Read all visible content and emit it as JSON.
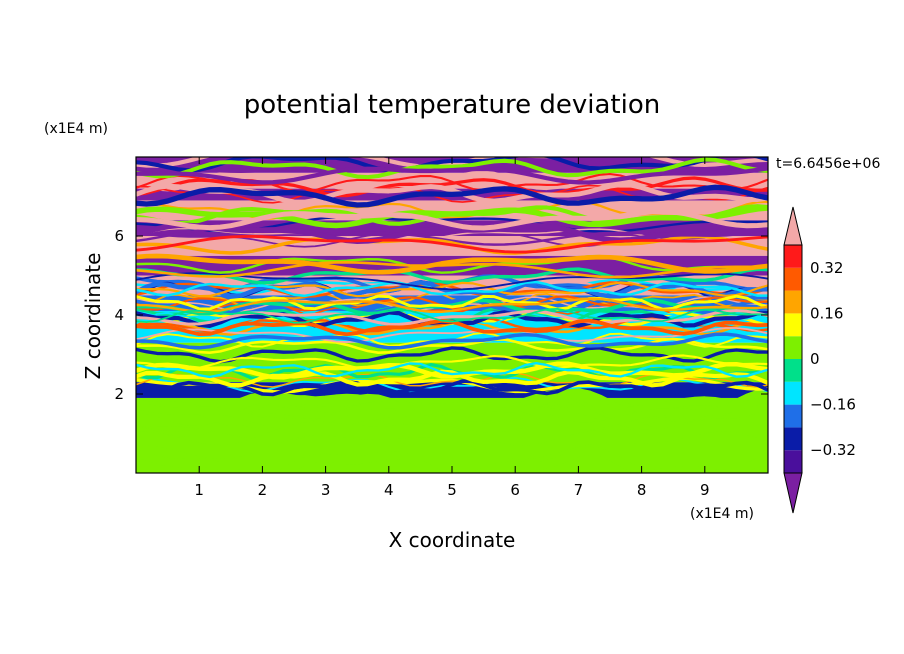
{
  "chart_data": {
    "type": "heatmap",
    "title": "potential temperature deviation",
    "xlabel": "X coordinate",
    "ylabel": "Z coordinate",
    "x_unit": "(x1E4 m)",
    "y_unit": "(x1E4 m)",
    "timestamp": "t=6.6456e+06",
    "xlim": [
      0,
      10
    ],
    "ylim": [
      0,
      8
    ],
    "x_ticks": [
      "1",
      "2",
      "3",
      "4",
      "5",
      "6",
      "7",
      "8",
      "9"
    ],
    "y_ticks": [
      "2",
      "4",
      "6"
    ],
    "colorbar": {
      "levels": [
        -0.48,
        -0.4,
        -0.32,
        -0.24,
        -0.16,
        -0.08,
        0,
        0.08,
        0.16,
        0.24,
        0.32,
        0.4,
        0.48
      ],
      "tick_labels": [
        "0.32",
        "0.16",
        "0",
        "−0.16",
        "−0.32"
      ],
      "tick_values": [
        0.32,
        0.16,
        0,
        -0.16,
        -0.32
      ],
      "colors": [
        "#7b1fa2",
        "#4a0f9c",
        "#0a1ca8",
        "#1f6fe8",
        "#00e5ff",
        "#00e08a",
        "#7df000",
        "#ffff00",
        "#ffa500",
        "#ff5a00",
        "#ff1a1a",
        "#f3a8a8"
      ]
    },
    "bands": [
      {
        "z": [
          0.0,
          1.9
        ],
        "value": 0.05,
        "note_color": "#7df000"
      },
      {
        "z": [
          1.9,
          2.3
        ],
        "value": -0.3
      },
      {
        "z": [
          2.3,
          3.3
        ],
        "value": 0.02
      },
      {
        "z": [
          3.3,
          4.1
        ],
        "value": -0.1
      },
      {
        "z": [
          4.1,
          4.5
        ],
        "value": -0.2
      },
      {
        "z": [
          4.5,
          5.0
        ],
        "value": 0.4
      },
      {
        "z": [
          5.0,
          5.5
        ],
        "value": -0.45
      },
      {
        "z": [
          5.5,
          6.0
        ],
        "value": 0.45
      },
      {
        "z": [
          6.0,
          6.4
        ],
        "value": -0.45
      },
      {
        "z": [
          6.4,
          6.9
        ],
        "value": 0.45
      },
      {
        "z": [
          6.9,
          7.2
        ],
        "value": -0.45
      },
      {
        "z": [
          7.2,
          7.6
        ],
        "value": 0.45
      },
      {
        "z": [
          7.6,
          8.0
        ],
        "value": -0.45
      }
    ]
  }
}
